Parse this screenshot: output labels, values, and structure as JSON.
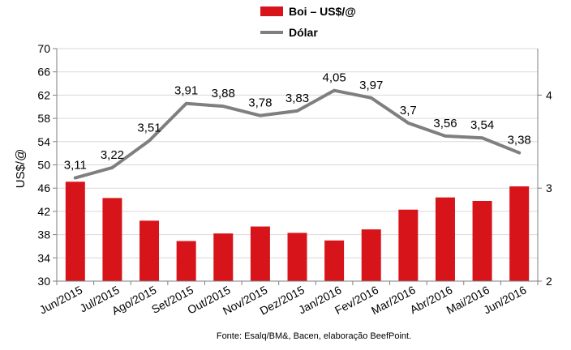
{
  "chart_data": {
    "type": "bar",
    "legend_position": "top-center",
    "grid": true,
    "categories": [
      "Jun/2015",
      "Jul/2015",
      "Ago/2015",
      "Set/2015",
      "Out/2015",
      "Nov/2015",
      "Dez/2015",
      "Jan/2016",
      "Fev/2016",
      "Mar/2016",
      "Abr/2016",
      "Mai/2016",
      "Jun/2016"
    ],
    "series": [
      {
        "name": "Boi – US$/@",
        "type": "bar",
        "axis": "left",
        "color": "#d7141a",
        "values": [
          47.1,
          44.3,
          40.4,
          36.9,
          38.2,
          39.4,
          38.3,
          37.0,
          38.9,
          42.3,
          44.4,
          43.8,
          46.3
        ]
      },
      {
        "name": "Dólar",
        "type": "line",
        "axis": "right",
        "color": "#7f7f7f",
        "values": [
          3.11,
          3.22,
          3.51,
          3.91,
          3.88,
          3.78,
          3.83,
          4.05,
          3.97,
          3.7,
          3.56,
          3.54,
          3.38
        ],
        "labels": [
          "3,11",
          "3,22",
          "3,51",
          "3,91",
          "3,88",
          "3,78",
          "3,83",
          "4,05",
          "3,97",
          "3,7",
          "3,56",
          "3,54",
          "3,38"
        ]
      }
    ],
    "ylabel": "US$/@",
    "ylim": [
      30,
      70
    ],
    "yticks": [
      30,
      34,
      38,
      42,
      46,
      50,
      54,
      58,
      62,
      66,
      70
    ],
    "y2lim": [
      2,
      4.5
    ],
    "y2ticks": [
      2,
      3,
      4
    ],
    "source": "Fonte: Esalq/BM&, Bacen, elaboração BeefPoint."
  }
}
